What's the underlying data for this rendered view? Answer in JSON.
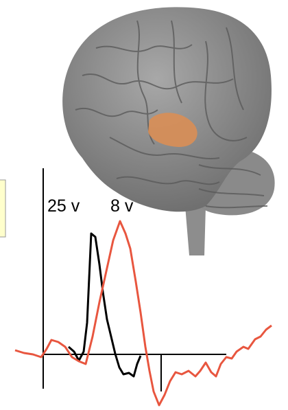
{
  "labels": {
    "first": "25 v",
    "second": "8 v"
  }
}
